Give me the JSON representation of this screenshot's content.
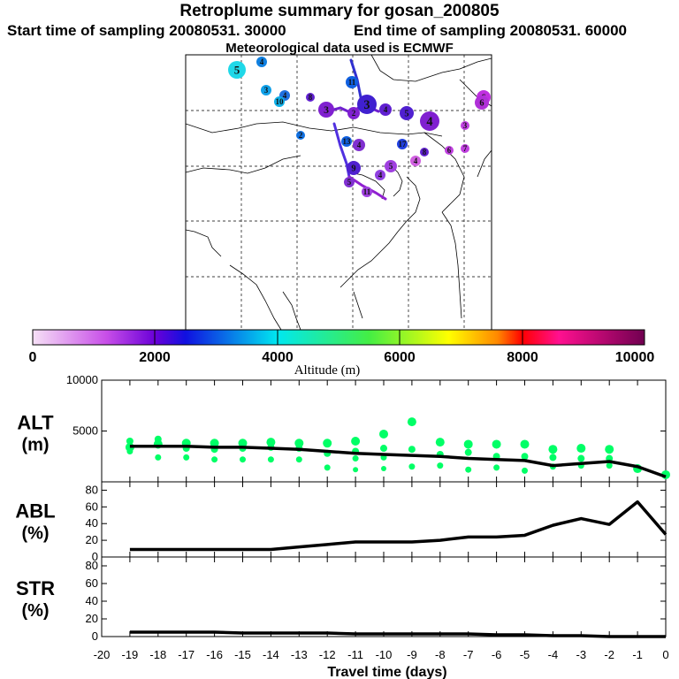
{
  "header": {
    "title": "Retroplume summary for gosan_200805",
    "start_label": "Start time of sampling 20080531. 30000",
    "end_label": "End time of sampling 20080531. 60000",
    "meteo_label": "Meteorological data used is ECMWF"
  },
  "colorbar": {
    "ticks": [
      "0",
      "2000",
      "4000",
      "6000",
      "8000",
      "10000"
    ],
    "label": "Altitude (m)"
  },
  "colors": {
    "line": "#000000",
    "dot": "#00ff66"
  },
  "chart_data": [
    {
      "type": "line",
      "panel": "ALT",
      "ylabel_line1": "ALT",
      "ylabel_line2": "(m)",
      "ylim": [
        0,
        10000
      ],
      "yticks": [
        0,
        5000,
        10000
      ],
      "ytick_labels": [
        "",
        "5000",
        "10000"
      ],
      "x": [
        -19,
        -18,
        -17,
        -16,
        -15,
        -14,
        -13,
        -12,
        -11,
        -10,
        -9,
        -8,
        -7,
        -6,
        -5,
        -4,
        -3,
        -2,
        -1,
        0
      ],
      "y": [
        3500,
        3500,
        3500,
        3400,
        3400,
        3300,
        3200,
        3000,
        2800,
        2700,
        2600,
        2500,
        2300,
        2200,
        2100,
        1600,
        1800,
        2000,
        1500,
        500
      ],
      "scatter": [
        {
          "x": -19,
          "ys": [
            3400,
            4000,
            3000
          ]
        },
        {
          "x": -18,
          "ys": [
            3700,
            4200,
            2400
          ]
        },
        {
          "x": -17,
          "ys": [
            3800,
            3300,
            2400
          ]
        },
        {
          "x": -16,
          "ys": [
            3800,
            3200,
            2200
          ]
        },
        {
          "x": -15,
          "ys": [
            3800,
            3300,
            2200
          ]
        },
        {
          "x": -14,
          "ys": [
            3900,
            3400,
            2200
          ]
        },
        {
          "x": -13,
          "ys": [
            3800,
            3300,
            2200
          ]
        },
        {
          "x": -12,
          "ys": [
            3800,
            2800,
            1400
          ]
        },
        {
          "x": -11,
          "ys": [
            4000,
            3000,
            2300,
            1200
          ]
        },
        {
          "x": -10,
          "ys": [
            4700,
            3300,
            2400,
            1300
          ]
        },
        {
          "x": -9,
          "ys": [
            5900,
            3200,
            1500
          ]
        },
        {
          "x": -8,
          "ys": [
            3900,
            2700,
            1600
          ]
        },
        {
          "x": -7,
          "ys": [
            3700,
            2900,
            1200
          ]
        },
        {
          "x": -6,
          "ys": [
            3700,
            2500,
            1400
          ]
        },
        {
          "x": -5,
          "ys": [
            3700,
            2500,
            1100
          ]
        },
        {
          "x": -4,
          "ys": [
            3200,
            2400,
            1500
          ]
        },
        {
          "x": -3,
          "ys": [
            3300,
            2300,
            1600
          ]
        },
        {
          "x": -2,
          "ys": [
            3200,
            2300,
            1600
          ]
        },
        {
          "x": -1,
          "ys": [
            1300
          ]
        },
        {
          "x": 0,
          "ys": [
            700
          ]
        }
      ]
    },
    {
      "type": "line",
      "panel": "ABL",
      "ylabel_line1": "ABL",
      "ylabel_line2": "(%)",
      "ylim": [
        0,
        90
      ],
      "yticks": [
        0,
        20,
        40,
        60,
        80
      ],
      "x": [
        -19,
        -18,
        -17,
        -16,
        -15,
        -14,
        -13,
        -12,
        -11,
        -10,
        -9,
        -8,
        -7,
        -6,
        -5,
        -4,
        -3,
        -2,
        -1,
        0
      ],
      "y": [
        9,
        9,
        9,
        9,
        9,
        9,
        12,
        15,
        18,
        18,
        18,
        20,
        24,
        24,
        26,
        38,
        46,
        39,
        66,
        27
      ]
    },
    {
      "type": "line",
      "panel": "STR",
      "ylabel_line1": "STR",
      "ylabel_line2": "(%)",
      "ylim": [
        0,
        90
      ],
      "yticks": [
        0,
        20,
        40,
        60,
        80
      ],
      "x": [
        -19,
        -18,
        -17,
        -16,
        -15,
        -14,
        -13,
        -12,
        -11,
        -10,
        -9,
        -8,
        -7,
        -6,
        -5,
        -4,
        -3,
        -2,
        -1,
        0
      ],
      "y": [
        5,
        5,
        5,
        5,
        4,
        4,
        4,
        4,
        3,
        3,
        3,
        3,
        3,
        2,
        2,
        1,
        1,
        0,
        0,
        0
      ]
    }
  ],
  "xaxis": {
    "label": "Travel time (days)",
    "ticks": [
      "-20",
      "-19",
      "-18",
      "-17",
      "-16",
      "-15",
      "-14",
      "-13",
      "-12",
      "-11",
      "-10",
      "-9",
      "-8",
      "-7",
      "-6",
      "-5",
      "-4",
      "-3",
      "-2",
      "-1",
      "0"
    ]
  },
  "map": {
    "point_labels": [
      "5",
      "4",
      "3",
      "4",
      "10",
      "8",
      "3",
      "11",
      "2",
      "3",
      "4",
      "5",
      "4",
      "6",
      "13",
      "4",
      "2",
      "17",
      "5",
      "4",
      "6",
      "7",
      "11",
      "9",
      "4",
      "5",
      "8",
      "6",
      "3"
    ]
  }
}
